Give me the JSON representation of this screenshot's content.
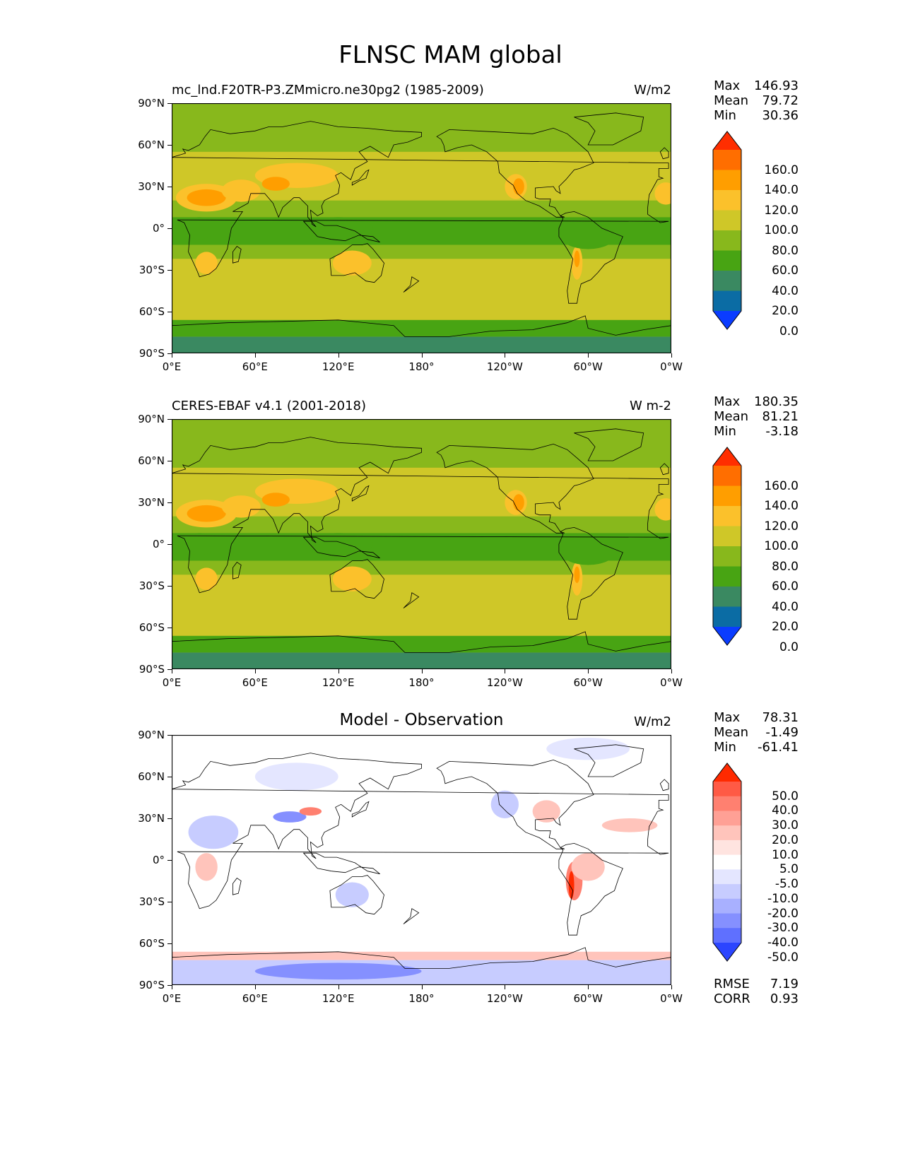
{
  "title": "FLNSC MAM global",
  "x_ticks": [
    "0°E",
    "60°E",
    "120°E",
    "180°",
    "120°W",
    "60°W",
    "0°W"
  ],
  "y_ticks": [
    "90°N",
    "60°N",
    "30°N",
    "0°",
    "30°S",
    "60°S",
    "90°S"
  ],
  "panels": [
    {
      "left_title": "mc_lnd.F20TR-P3.ZMmicro.ne30pg2 (1985-2009)",
      "center_title": "",
      "units": "W/m2",
      "stats": [
        {
          "label": "Max",
          "value": "146.93"
        },
        {
          "label": "Mean",
          "value": "79.72"
        },
        {
          "label": "Min",
          "value": "30.36"
        }
      ],
      "colorbar": {
        "labels": [
          "160.0",
          "140.0",
          "120.0",
          "100.0",
          "80.0",
          "60.0",
          "40.0",
          "20.0",
          "0.0"
        ],
        "colors": [
          "#ff2e00",
          "#ff6e00",
          "#ff9e00",
          "#fbc12b",
          "#cfc728",
          "#88b81c",
          "#48a413",
          "#3a8961",
          "#0b6ca4",
          "#0a3cff"
        ]
      }
    },
    {
      "left_title": "CERES-EBAF v4.1 (2001-2018)",
      "center_title": "",
      "units": "W m-2",
      "stats": [
        {
          "label": "Max",
          "value": "180.35"
        },
        {
          "label": "Mean",
          "value": "81.21"
        },
        {
          "label": "Min",
          "value": "-3.18"
        }
      ],
      "colorbar": {
        "labels": [
          "160.0",
          "140.0",
          "120.0",
          "100.0",
          "80.0",
          "60.0",
          "40.0",
          "20.0",
          "0.0"
        ],
        "colors": [
          "#ff2e00",
          "#ff6e00",
          "#ff9e00",
          "#fbc12b",
          "#cfc728",
          "#88b81c",
          "#48a413",
          "#3a8961",
          "#0b6ca4",
          "#0a3cff"
        ]
      }
    },
    {
      "left_title": "",
      "center_title": "Model - Observation",
      "units": "W/m2",
      "stats": [
        {
          "label": "Max",
          "value": "78.31"
        },
        {
          "label": "Mean",
          "value": "-1.49"
        },
        {
          "label": "Min",
          "value": "-61.41"
        }
      ],
      "colorbar": {
        "labels": [
          "50.0",
          "40.0",
          "30.0",
          "20.0",
          "10.0",
          "5.0",
          "-5.0",
          "-10.0",
          "-20.0",
          "-30.0",
          "-40.0",
          "-50.0"
        ],
        "colors": [
          "#ff2a00",
          "#ff5a45",
          "#ff8070",
          "#ffa095",
          "#ffc4bb",
          "#ffe4e0",
          "#ffffff",
          "#e4e6ff",
          "#c7ccff",
          "#a8b0ff",
          "#8590ff",
          "#5f70ff",
          "#2b45ff"
        ]
      },
      "rmse": {
        "label": "RMSE",
        "value": "7.19"
      },
      "corr": {
        "label": "CORR",
        "value": "0.93"
      }
    }
  ],
  "map_palette": {
    "field_a": {
      "polar": "#3a8961",
      "subpolar": "#48a413",
      "midlat": "#cfc728",
      "subtrop": "#88b81c",
      "tropics": "#48a413",
      "desert": "#fbc12b",
      "hot": "#ff9e00",
      "vhot": "#ff6e00"
    },
    "diff": {
      "base": "#ffffff",
      "neg1": "#e4e6ff",
      "neg2": "#c7ccff",
      "neg3": "#8590ff",
      "pos1": "#ffc4bb",
      "pos2": "#ff8070",
      "pos3": "#ff2a00"
    }
  }
}
